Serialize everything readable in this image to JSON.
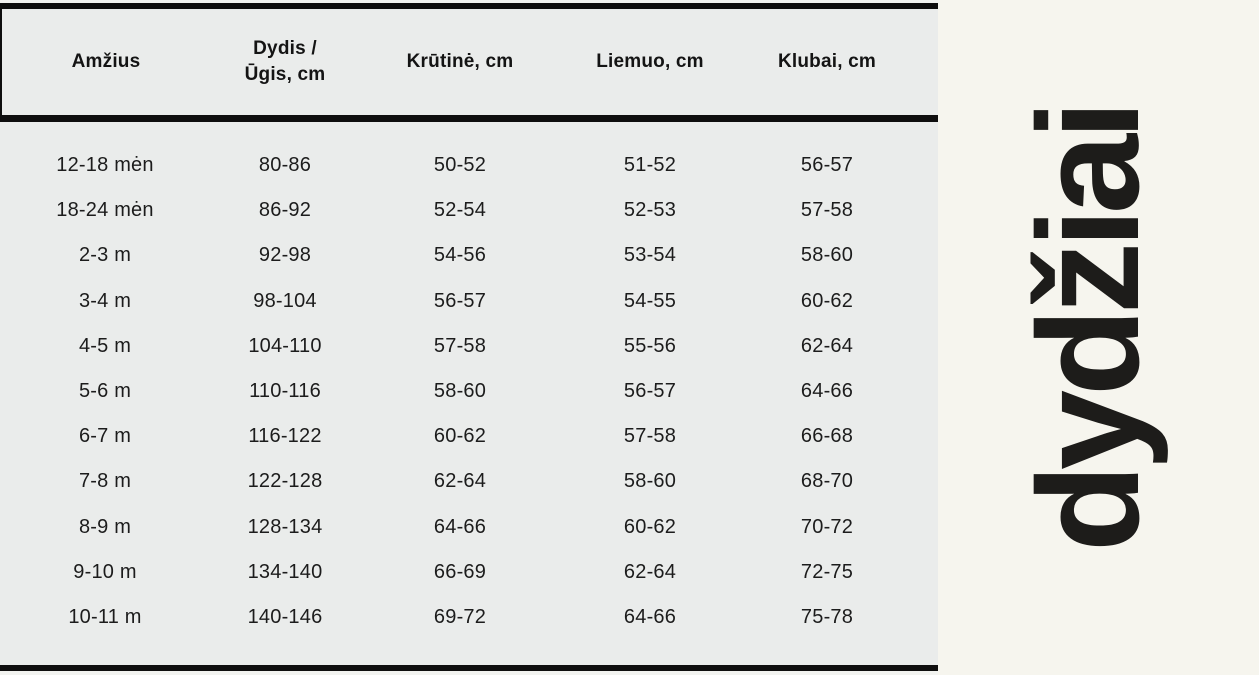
{
  "side_panel": {
    "vertical_text": "dydžiai"
  },
  "colors": {
    "table_background": "#eaeceb",
    "panel_background": "#f6f5ee",
    "rule_black": "#0e0e0e",
    "text_black": "#1c1c1c"
  },
  "table": {
    "columns": [
      {
        "label": "Amžius"
      },
      {
        "label": "Dydis / Ūgis, cm",
        "line1": "Dydis /",
        "line2": "Ūgis, cm"
      },
      {
        "label": "Krūtinė, cm"
      },
      {
        "label": "Liemuo, cm"
      },
      {
        "label": "Klubai, cm"
      }
    ],
    "rows": [
      [
        "12-18 mėn",
        "80-86",
        "50-52",
        "51-52",
        "56-57"
      ],
      [
        "18-24 mėn",
        "86-92",
        "52-54",
        "52-53",
        "57-58"
      ],
      [
        "2-3 m",
        "92-98",
        "54-56",
        "53-54",
        "58-60"
      ],
      [
        "3-4 m",
        "98-104",
        "56-57",
        "54-55",
        "60-62"
      ],
      [
        "4-5 m",
        "104-110",
        "57-58",
        "55-56",
        "62-64"
      ],
      [
        "5-6 m",
        "110-116",
        "58-60",
        "56-57",
        "64-66"
      ],
      [
        "6-7 m",
        "116-122",
        "60-62",
        "57-58",
        "66-68"
      ],
      [
        "7-8 m",
        "122-128",
        "62-64",
        "58-60",
        "68-70"
      ],
      [
        "8-9 m",
        "128-134",
        "64-66",
        "60-62",
        "70-72"
      ],
      [
        "9-10 m",
        "134-140",
        "66-69",
        "62-64",
        "72-75"
      ],
      [
        "10-11 m",
        "140-146",
        "69-72",
        "64-66",
        "75-78"
      ]
    ]
  }
}
